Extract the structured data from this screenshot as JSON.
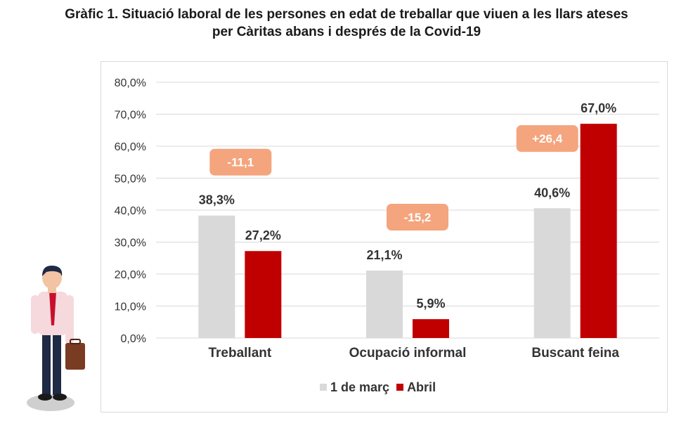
{
  "title_line1": "Gràfic 1. Situació laboral de les persones en edat de treballar que viuen a les llars ateses",
  "title_line2": "per Càritas abans i després de la Covid-19",
  "colors": {
    "series1": "#d9d9d9",
    "series2": "#c00000",
    "badge": "#f4a57e",
    "axis": "#d9d9d9"
  },
  "chart_data": {
    "type": "bar",
    "categories": [
      "Treballant",
      "Ocupació informal",
      "Buscant feina"
    ],
    "series": [
      {
        "name": "1 de març",
        "values": [
          38.3,
          21.1,
          40.6
        ],
        "labels": [
          "38,3%",
          "21,1%",
          "40,6%"
        ]
      },
      {
        "name": "Abril",
        "values": [
          27.2,
          5.9,
          67.0
        ],
        "labels": [
          "27,2%",
          "5,9%",
          "67,0%"
        ]
      }
    ],
    "differences": [
      "-11,1",
      "-15,2",
      "+26,4"
    ],
    "yticks": [
      "0,0%",
      "10,0%",
      "20,0%",
      "30,0%",
      "40,0%",
      "50,0%",
      "60,0%",
      "70,0%",
      "80,0%"
    ],
    "ylim": [
      0,
      80
    ],
    "grid": true,
    "legend_position": "bottom"
  }
}
